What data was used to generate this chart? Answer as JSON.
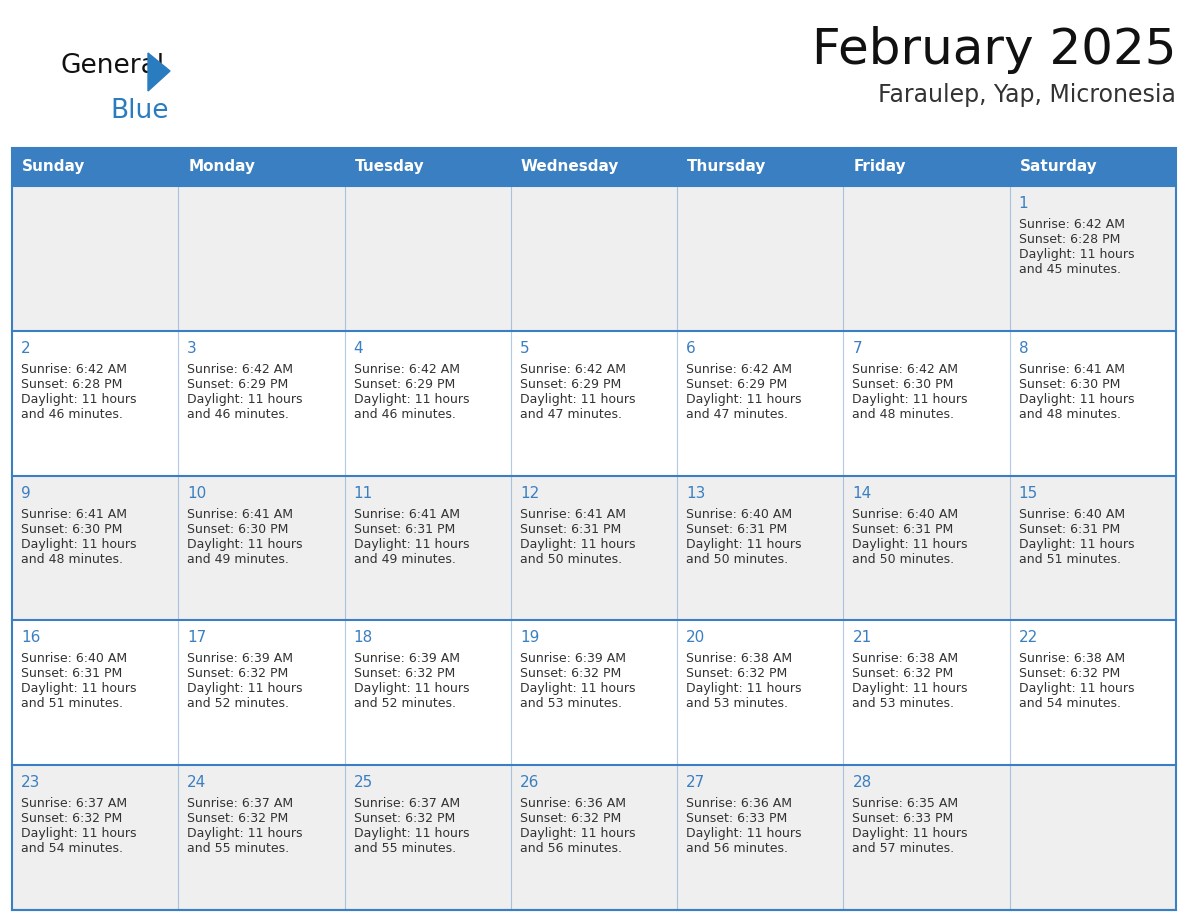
{
  "title": "February 2025",
  "subtitle": "Faraulep, Yap, Micronesia",
  "days_of_week": [
    "Sunday",
    "Monday",
    "Tuesday",
    "Wednesday",
    "Thursday",
    "Friday",
    "Saturday"
  ],
  "header_bg": "#3a7fc1",
  "header_text": "#ffffff",
  "cell_bg_odd": "#efefef",
  "cell_bg_even": "#ffffff",
  "border_color": "#3a7fc1",
  "day_num_color": "#3a7fc1",
  "text_color": "#333333",
  "logo_general_color": "#111111",
  "logo_blue_color": "#2a7cc1",
  "title_color": "#111111",
  "subtitle_color": "#333333",
  "calendar_data": [
    [
      null,
      null,
      null,
      null,
      null,
      null,
      {
        "day": 1,
        "sunrise": "6:42 AM",
        "sunset": "6:28 PM",
        "daylight": "11 hours and 45 minutes."
      }
    ],
    [
      {
        "day": 2,
        "sunrise": "6:42 AM",
        "sunset": "6:28 PM",
        "daylight": "11 hours and 46 minutes."
      },
      {
        "day": 3,
        "sunrise": "6:42 AM",
        "sunset": "6:29 PM",
        "daylight": "11 hours and 46 minutes."
      },
      {
        "day": 4,
        "sunrise": "6:42 AM",
        "sunset": "6:29 PM",
        "daylight": "11 hours and 46 minutes."
      },
      {
        "day": 5,
        "sunrise": "6:42 AM",
        "sunset": "6:29 PM",
        "daylight": "11 hours and 47 minutes."
      },
      {
        "day": 6,
        "sunrise": "6:42 AM",
        "sunset": "6:29 PM",
        "daylight": "11 hours and 47 minutes."
      },
      {
        "day": 7,
        "sunrise": "6:42 AM",
        "sunset": "6:30 PM",
        "daylight": "11 hours and 48 minutes."
      },
      {
        "day": 8,
        "sunrise": "6:41 AM",
        "sunset": "6:30 PM",
        "daylight": "11 hours and 48 minutes."
      }
    ],
    [
      {
        "day": 9,
        "sunrise": "6:41 AM",
        "sunset": "6:30 PM",
        "daylight": "11 hours and 48 minutes."
      },
      {
        "day": 10,
        "sunrise": "6:41 AM",
        "sunset": "6:30 PM",
        "daylight": "11 hours and 49 minutes."
      },
      {
        "day": 11,
        "sunrise": "6:41 AM",
        "sunset": "6:31 PM",
        "daylight": "11 hours and 49 minutes."
      },
      {
        "day": 12,
        "sunrise": "6:41 AM",
        "sunset": "6:31 PM",
        "daylight": "11 hours and 50 minutes."
      },
      {
        "day": 13,
        "sunrise": "6:40 AM",
        "sunset": "6:31 PM",
        "daylight": "11 hours and 50 minutes."
      },
      {
        "day": 14,
        "sunrise": "6:40 AM",
        "sunset": "6:31 PM",
        "daylight": "11 hours and 50 minutes."
      },
      {
        "day": 15,
        "sunrise": "6:40 AM",
        "sunset": "6:31 PM",
        "daylight": "11 hours and 51 minutes."
      }
    ],
    [
      {
        "day": 16,
        "sunrise": "6:40 AM",
        "sunset": "6:31 PM",
        "daylight": "11 hours and 51 minutes."
      },
      {
        "day": 17,
        "sunrise": "6:39 AM",
        "sunset": "6:32 PM",
        "daylight": "11 hours and 52 minutes."
      },
      {
        "day": 18,
        "sunrise": "6:39 AM",
        "sunset": "6:32 PM",
        "daylight": "11 hours and 52 minutes."
      },
      {
        "day": 19,
        "sunrise": "6:39 AM",
        "sunset": "6:32 PM",
        "daylight": "11 hours and 53 minutes."
      },
      {
        "day": 20,
        "sunrise": "6:38 AM",
        "sunset": "6:32 PM",
        "daylight": "11 hours and 53 minutes."
      },
      {
        "day": 21,
        "sunrise": "6:38 AM",
        "sunset": "6:32 PM",
        "daylight": "11 hours and 53 minutes."
      },
      {
        "day": 22,
        "sunrise": "6:38 AM",
        "sunset": "6:32 PM",
        "daylight": "11 hours and 54 minutes."
      }
    ],
    [
      {
        "day": 23,
        "sunrise": "6:37 AM",
        "sunset": "6:32 PM",
        "daylight": "11 hours and 54 minutes."
      },
      {
        "day": 24,
        "sunrise": "6:37 AM",
        "sunset": "6:32 PM",
        "daylight": "11 hours and 55 minutes."
      },
      {
        "day": 25,
        "sunrise": "6:37 AM",
        "sunset": "6:32 PM",
        "daylight": "11 hours and 55 minutes."
      },
      {
        "day": 26,
        "sunrise": "6:36 AM",
        "sunset": "6:32 PM",
        "daylight": "11 hours and 56 minutes."
      },
      {
        "day": 27,
        "sunrise": "6:36 AM",
        "sunset": "6:33 PM",
        "daylight": "11 hours and 56 minutes."
      },
      {
        "day": 28,
        "sunrise": "6:35 AM",
        "sunset": "6:33 PM",
        "daylight": "11 hours and 57 minutes."
      },
      null
    ]
  ]
}
